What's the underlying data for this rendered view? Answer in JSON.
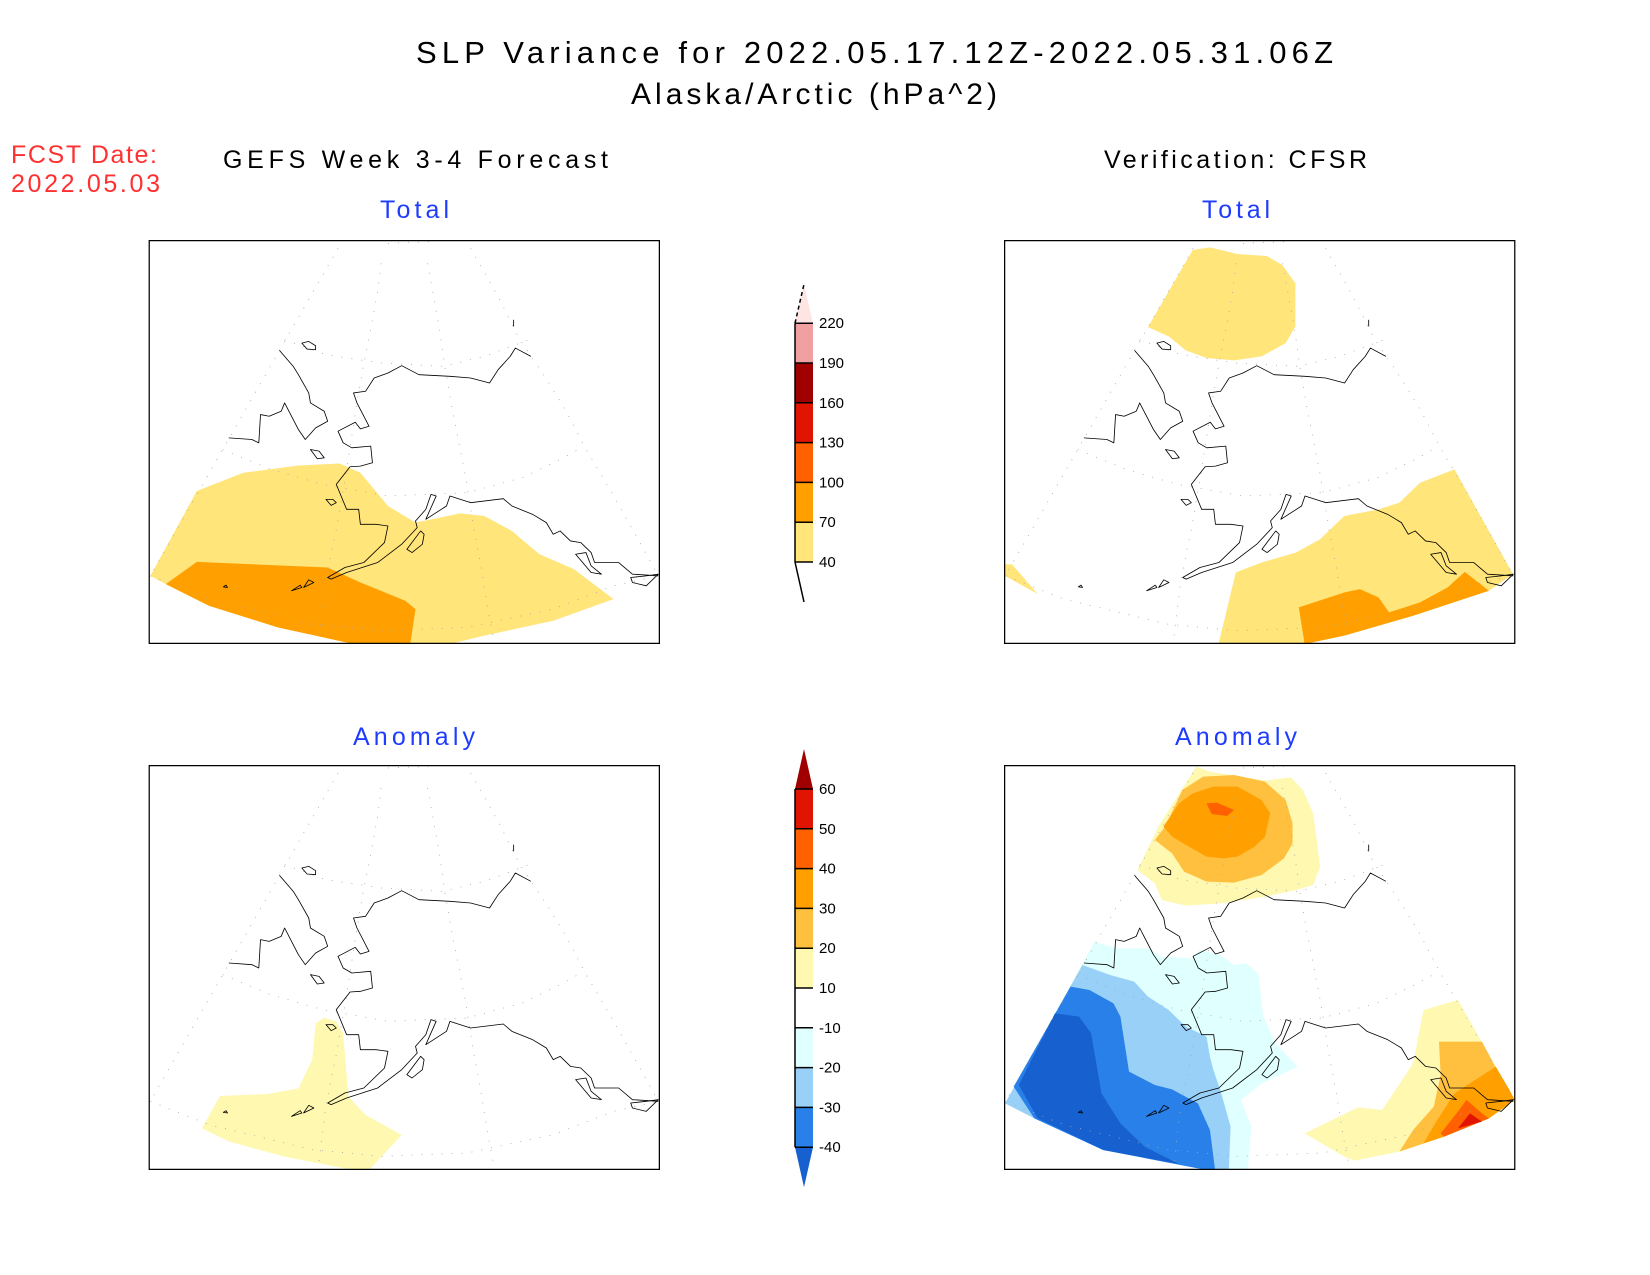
{
  "header": {
    "title": "SLP Variance for 2022.05.17.12Z-2022.05.31.06Z",
    "subtitle": "Alaska/Arctic (hPa^2)",
    "fcst_date_label": "FCST Date:",
    "fcst_date_value": "2022.05.03"
  },
  "columns": {
    "left": "GEFS Week 3-4 Forecast",
    "right": "Verification: CFSR"
  },
  "panels": {
    "forecast_total": "Total",
    "verification_total": "Total",
    "forecast_anomaly": "Anomaly",
    "verification_anomaly": "Anomaly"
  },
  "colorbars": {
    "total": {
      "levels": [
        "40",
        "70",
        "100",
        "130",
        "160",
        "190",
        "220"
      ],
      "colors": [
        "#ffe57a",
        "#ffa000",
        "#ff6000",
        "#e01400",
        "#a00000",
        "#f0a0a0"
      ],
      "over_color": "#ffe4e4"
    },
    "anomaly": {
      "levels": [
        "60",
        "50",
        "40",
        "30",
        "20",
        "10",
        "-10",
        "-20",
        "-30",
        "-40"
      ],
      "colors": [
        "#e01400",
        "#ff6000",
        "#ffa000",
        "#ffc040",
        "#fff8b0",
        "#ffffff",
        "#e0ffff",
        "#98d0f8",
        "#2880e8"
      ],
      "over_color": "#a00000",
      "under_color": "#1660d0"
    }
  }
}
